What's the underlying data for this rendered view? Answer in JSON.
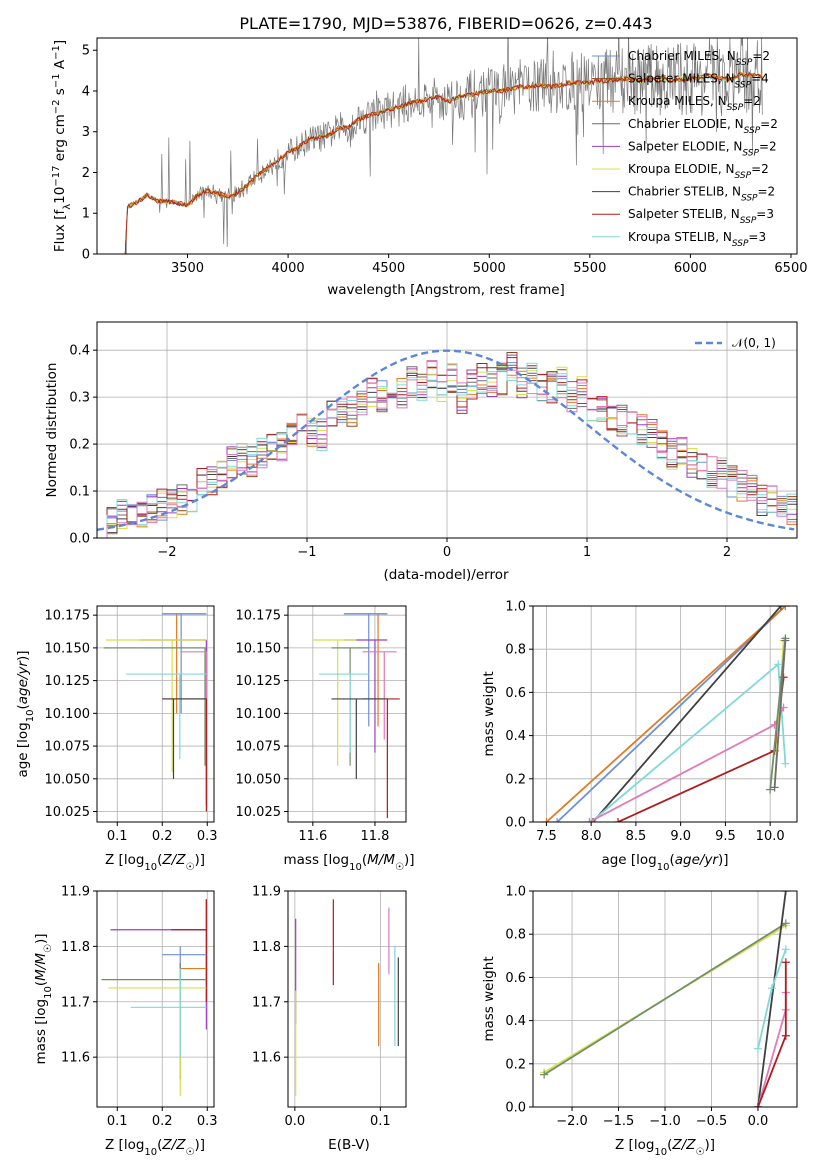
{
  "colors": {
    "chabrier_miles": "#6f8fd8",
    "salpeter_miles": "#8c4a1c",
    "kroupa_miles": "#e07b22",
    "chabrier_elodie": "#6e6e6e",
    "salpeter_elodie": "#9b3fc0",
    "kroupa_elodie": "#d8e04a",
    "chabrier_stelib": "#404040",
    "salpeter_stelib": "#b01c1c",
    "kroupa_stelib": "#80d8d8",
    "pink": "#e07ab8",
    "olive": "#6f8f6f",
    "normal": "#5b87d9"
  },
  "chart_data": [
    {
      "id": "spectrum",
      "type": "line",
      "title": "PLATE=1790, MJD=53876, FIBERID=0626, z=0.443",
      "xlabel": "wavelength [Angstrom, rest frame]",
      "ylabel": "Flux [f_λ 10^-17 erg cm^-2 s^-1 A^-1]",
      "xlim": [
        3050,
        6530
      ],
      "ylim": [
        0,
        5.3
      ],
      "xticks": [
        "3500",
        "4000",
        "4500",
        "5000",
        "5500",
        "6000",
        "6500"
      ],
      "yticks": [
        "0",
        "1",
        "2",
        "3",
        "4",
        "5"
      ],
      "model_points": [
        [
          3190,
          0
        ],
        [
          3200,
          1.15
        ],
        [
          3260,
          1.3
        ],
        [
          3300,
          1.45
        ],
        [
          3350,
          1.3
        ],
        [
          3400,
          1.3
        ],
        [
          3450,
          1.25
        ],
        [
          3500,
          1.2
        ],
        [
          3550,
          1.45
        ],
        [
          3600,
          1.55
        ],
        [
          3650,
          1.5
        ],
        [
          3700,
          1.4
        ],
        [
          3750,
          1.5
        ],
        [
          3800,
          1.7
        ],
        [
          3850,
          1.95
        ],
        [
          3900,
          2.1
        ],
        [
          3950,
          2.3
        ],
        [
          4000,
          2.5
        ],
        [
          4050,
          2.6
        ],
        [
          4100,
          2.8
        ],
        [
          4150,
          2.85
        ],
        [
          4200,
          2.9
        ],
        [
          4250,
          3.1
        ],
        [
          4300,
          3.1
        ],
        [
          4350,
          3.3
        ],
        [
          4400,
          3.4
        ],
        [
          4450,
          3.45
        ],
        [
          4500,
          3.55
        ],
        [
          4550,
          3.6
        ],
        [
          4600,
          3.7
        ],
        [
          4650,
          3.75
        ],
        [
          4700,
          3.8
        ],
        [
          4750,
          3.85
        ],
        [
          4800,
          3.75
        ],
        [
          4850,
          3.85
        ],
        [
          4900,
          3.9
        ],
        [
          4950,
          3.95
        ],
        [
          5000,
          4.0
        ],
        [
          5050,
          4.0
        ],
        [
          5100,
          4.05
        ],
        [
          5150,
          4.1
        ],
        [
          5200,
          4.1
        ],
        [
          5250,
          4.15
        ],
        [
          5300,
          4.1
        ],
        [
          5350,
          4.15
        ],
        [
          5400,
          4.2
        ],
        [
          5450,
          4.2
        ],
        [
          5500,
          4.2
        ],
        [
          5550,
          4.25
        ],
        [
          5600,
          4.25
        ],
        [
          5650,
          4.3
        ],
        [
          5700,
          4.3
        ],
        [
          5750,
          4.25
        ],
        [
          5800,
          4.3
        ],
        [
          5850,
          4.3
        ],
        [
          5900,
          4.25
        ],
        [
          5950,
          4.3
        ],
        [
          6000,
          4.3
        ],
        [
          6050,
          4.35
        ],
        [
          6100,
          4.35
        ],
        [
          6150,
          4.3
        ],
        [
          6200,
          4.3
        ],
        [
          6250,
          4.4
        ],
        [
          6300,
          4.4
        ],
        [
          6350,
          4.35
        ]
      ],
      "legend": [
        {
          "name": "Chabrier MILES, N_SSP=2",
          "color": "chabrier_miles"
        },
        {
          "name": "Salpeter MILES, N_SSP=4",
          "color": "salpeter_miles"
        },
        {
          "name": "Kroupa MILES, N_SSP=2",
          "color": "kroupa_miles"
        },
        {
          "name": "Chabrier ELODIE, N_SSP=2",
          "color": "chabrier_elodie"
        },
        {
          "name": "Salpeter ELODIE, N_SSP=2",
          "color": "salpeter_elodie"
        },
        {
          "name": "Kroupa ELODIE, N_SSP=2",
          "color": "kroupa_elodie"
        },
        {
          "name": "Chabrier STELIB, N_SSP=2",
          "color": "chabrier_stelib"
        },
        {
          "name": "Salpeter STELIB, N_SSP=3",
          "color": "salpeter_stelib"
        },
        {
          "name": "Kroupa STELIB, N_SSP=3",
          "color": "kroupa_stelib"
        }
      ],
      "legend_placement": "upper-right"
    },
    {
      "id": "residuals",
      "type": "histogram",
      "xlabel": "(data-model)/error",
      "ylabel": "Normed distribution",
      "xlim": [
        -2.5,
        2.5
      ],
      "ylim": [
        0,
        0.46
      ],
      "xticks": [
        "−2",
        "−1",
        "0",
        "1",
        "2"
      ],
      "yticks": [
        "0.0",
        "0.1",
        "0.2",
        "0.3",
        "0.4"
      ],
      "bin_width": 0.1,
      "mean_values": [
        0.025,
        0.04,
        0.05,
        0.06,
        0.05,
        0.06,
        0.07,
        0.07,
        0.08,
        0.09,
        0.12,
        0.12,
        0.13,
        0.16,
        0.17,
        0.16,
        0.18,
        0.19,
        0.19,
        0.22,
        0.23,
        0.23,
        0.22,
        0.26,
        0.27,
        0.27,
        0.28,
        0.31,
        0.3,
        0.32,
        0.31,
        0.33,
        0.32,
        0.35,
        0.32,
        0.34,
        0.3,
        0.33,
        0.34,
        0.33,
        0.34,
        0.37,
        0.33,
        0.34,
        0.32,
        0.32,
        0.33,
        0.3,
        0.31,
        0.28,
        0.27,
        0.26,
        0.25,
        0.24,
        0.23,
        0.22,
        0.2,
        0.18,
        0.18,
        0.16,
        0.15,
        0.14,
        0.14,
        0.12,
        0.11,
        0.1,
        0.08,
        0.08,
        0.07,
        0.06
      ],
      "series_colors": [
        "chabrier_miles",
        "salpeter_miles",
        "kroupa_miles",
        "chabrier_elodie",
        "salpeter_elodie",
        "kroupa_elodie",
        "chabrier_stelib",
        "salpeter_stelib",
        "kroupa_stelib",
        "pink"
      ],
      "legend": [
        {
          "name": "𝒩(0, 1)",
          "color": "normal"
        }
      ],
      "legend_placement": "upper-right",
      "grid": true
    },
    {
      "id": "age-vs-z",
      "type": "errorbar",
      "xlabel": "Z [log10(Z/Z☉)]",
      "ylabel": "age [log10(age/yr)]",
      "xlim": [
        0.055,
        0.315
      ],
      "ylim": [
        10.017,
        10.182
      ],
      "xticks": [
        "0.1",
        "0.2",
        "0.3"
      ],
      "yticks": [
        "10.025",
        "10.050",
        "10.075",
        "10.100",
        "10.125",
        "10.150",
        "10.175"
      ],
      "points": [
        {
          "x": 0.232,
          "y": 10.176,
          "x0": 0.2,
          "x1": 0.298,
          "y0": 10.1,
          "y1": 10.176,
          "color": "kroupa_miles"
        },
        {
          "x": 0.242,
          "y": 10.176,
          "x0": 0.2,
          "x1": 0.298,
          "y0": 10.1,
          "y1": 10.176,
          "color": "chabrier_miles"
        },
        {
          "x": 0.298,
          "y": 10.156,
          "x0": 0.15,
          "x1": 0.298,
          "y0": 10.03,
          "y1": 10.156,
          "color": "salpeter_elodie"
        },
        {
          "x": 0.222,
          "y": 10.156,
          "x0": 0.075,
          "x1": 0.298,
          "y0": 10.055,
          "y1": 10.156,
          "color": "kroupa_elodie"
        },
        {
          "x": 0.295,
          "y": 10.15,
          "x0": 0.07,
          "x1": 0.298,
          "y0": 10.06,
          "y1": 10.15,
          "color": "olive"
        },
        {
          "x": 0.298,
          "y": 10.147,
          "x0": 0.24,
          "x1": 0.298,
          "y0": 10.06,
          "y1": 10.147,
          "color": "pink"
        },
        {
          "x": 0.239,
          "y": 10.13,
          "x0": 0.12,
          "x1": 0.298,
          "y0": 10.065,
          "y1": 10.13,
          "color": "kroupa_stelib"
        },
        {
          "x": 0.298,
          "y": 10.111,
          "x0": 0.2,
          "x1": 0.298,
          "y0": 10.025,
          "y1": 10.111,
          "color": "salpeter_stelib"
        },
        {
          "x": 0.225,
          "y": 10.111,
          "x0": 0.2,
          "x1": 0.298,
          "y0": 10.05,
          "y1": 10.111,
          "color": "chabrier_stelib"
        }
      ],
      "grid": true
    },
    {
      "id": "age-vs-mass",
      "type": "errorbar",
      "xlabel": "mass [log10(M/M☉)]",
      "ylabel": "",
      "xlim": [
        11.52,
        11.9
      ],
      "ylim": [
        10.017,
        10.182
      ],
      "xticks": [
        "11.6",
        "11.8"
      ],
      "yticks": [
        "10.025",
        "10.050",
        "10.075",
        "10.100",
        "10.125",
        "10.150",
        "10.175"
      ],
      "points": [
        {
          "x": 11.81,
          "y": 10.176,
          "x0": 11.7,
          "x1": 11.84,
          "y0": 10.09,
          "y1": 10.176,
          "color": "kroupa_miles"
        },
        {
          "x": 11.78,
          "y": 10.176,
          "x0": 11.7,
          "x1": 11.84,
          "y0": 10.09,
          "y1": 10.176,
          "color": "chabrier_miles"
        },
        {
          "x": 11.8,
          "y": 10.156,
          "x0": 11.7,
          "x1": 11.84,
          "y0": 10.07,
          "y1": 10.156,
          "color": "salpeter_elodie"
        },
        {
          "x": 11.68,
          "y": 10.156,
          "x0": 11.6,
          "x1": 11.74,
          "y0": 10.06,
          "y1": 10.156,
          "color": "kroupa_elodie"
        },
        {
          "x": 11.72,
          "y": 10.15,
          "x0": 11.66,
          "x1": 11.78,
          "y0": 10.06,
          "y1": 10.15,
          "color": "olive"
        },
        {
          "x": 11.83,
          "y": 10.147,
          "x0": 11.76,
          "x1": 11.87,
          "y0": 10.08,
          "y1": 10.147,
          "color": "pink"
        },
        {
          "x": 11.72,
          "y": 10.13,
          "x0": 11.62,
          "x1": 11.78,
          "y0": 10.07,
          "y1": 10.13,
          "color": "kroupa_stelib"
        },
        {
          "x": 11.84,
          "y": 10.111,
          "x0": 11.76,
          "x1": 11.88,
          "y0": 10.02,
          "y1": 10.111,
          "color": "salpeter_stelib"
        },
        {
          "x": 11.74,
          "y": 10.111,
          "x0": 11.66,
          "x1": 11.84,
          "y0": 10.05,
          "y1": 10.111,
          "color": "chabrier_stelib"
        }
      ],
      "grid": true
    },
    {
      "id": "weight-vs-age",
      "type": "line",
      "xlabel": "age [log10(age/yr)]",
      "ylabel": "mass weight",
      "xlim": [
        7.35,
        10.3
      ],
      "ylim": [
        0,
        1.0
      ],
      "xticks": [
        "7.5",
        "8.0",
        "8.5",
        "9.0",
        "9.5",
        "10.0"
      ],
      "yticks": [
        "0.0",
        "0.2",
        "0.4",
        "0.6",
        "0.8",
        "1.0"
      ],
      "series": [
        {
          "color": "chabrier_miles",
          "x": [
            7.62,
            10.17
          ],
          "y": [
            0.0,
            1.0
          ]
        },
        {
          "color": "kroupa_miles",
          "x": [
            7.5,
            10.17
          ],
          "y": [
            0.0,
            1.0
          ]
        },
        {
          "color": "chabrier_stelib",
          "x": [
            8.02,
            10.12
          ],
          "y": [
            0.0,
            1.0
          ]
        },
        {
          "color": "kroupa_stelib",
          "x": [
            8.0,
            10.09,
            10.17
          ],
          "y": [
            0.0,
            0.73,
            0.27
          ]
        },
        {
          "color": "pink",
          "x": [
            7.98,
            10.05,
            10.15
          ],
          "y": [
            0.0,
            0.45,
            0.53
          ]
        },
        {
          "color": "salpeter_stelib",
          "x": [
            8.3,
            10.05,
            10.15
          ],
          "y": [
            0.0,
            0.33,
            0.67
          ]
        },
        {
          "color": "kroupa_elodie",
          "x": [
            10.05,
            10.15
          ],
          "y": [
            0.16,
            0.84
          ]
        },
        {
          "color": "olive",
          "x": [
            10.0,
            10.17
          ],
          "y": [
            0.15,
            0.85
          ]
        },
        {
          "color": "chabrier_elodie",
          "x": [
            10.05,
            10.17
          ],
          "y": [
            0.16,
            0.84
          ]
        }
      ],
      "grid": true
    },
    {
      "id": "mass-vs-z",
      "type": "errorbar",
      "xlabel": "Z [log10(Z/Z☉)]",
      "ylabel": "mass [log10(M/M☉)]",
      "xlim": [
        0.055,
        0.315
      ],
      "ylim": [
        11.51,
        11.9
      ],
      "xticks": [
        "0.1",
        "0.2",
        "0.3"
      ],
      "yticks": [
        "11.6",
        "11.7",
        "11.8",
        "11.9"
      ],
      "points": [
        {
          "x": 0.298,
          "y": 11.83,
          "x0": 0.085,
          "x1": 0.298,
          "y0": 11.65,
          "y1": 11.885,
          "color": "salpeter_elodie"
        },
        {
          "x": 0.298,
          "y": 11.83,
          "x0": 0.22,
          "x1": 0.298,
          "y0": 11.7,
          "y1": 11.885,
          "color": "salpeter_stelib"
        },
        {
          "x": 0.24,
          "y": 11.785,
          "x0": 0.2,
          "x1": 0.298,
          "y0": 11.64,
          "y1": 11.8,
          "color": "chabrier_miles"
        },
        {
          "x": 0.24,
          "y": 11.76,
          "x0": 0.24,
          "x1": 0.298,
          "y0": 11.63,
          "y1": 11.77,
          "color": "kroupa_miles"
        },
        {
          "x": 0.24,
          "y": 11.74,
          "x0": 0.065,
          "x1": 0.298,
          "y0": 11.56,
          "y1": 11.77,
          "color": "olive"
        },
        {
          "x": 0.24,
          "y": 11.725,
          "x0": 0.08,
          "x1": 0.298,
          "y0": 11.53,
          "y1": 11.74,
          "color": "kroupa_elodie"
        },
        {
          "x": 0.24,
          "y": 11.69,
          "x0": 0.13,
          "x1": 0.298,
          "y0": 11.6,
          "y1": 11.76,
          "color": "kroupa_stelib"
        }
      ],
      "grid": true
    },
    {
      "id": "mass-vs-ebv",
      "type": "errorbar",
      "xlabel": "E(B-V)",
      "ylabel": "",
      "xlim": [
        -0.008,
        0.13
      ],
      "ylim": [
        11.51,
        11.9
      ],
      "xticks": [
        "0.0",
        "0.1"
      ],
      "yticks": [
        "11.6",
        "11.7",
        "11.8",
        "11.9"
      ],
      "points": [
        {
          "x": 0.001,
          "y": 11.77,
          "y0": 11.66,
          "y1": 11.85,
          "color": "salpeter_elodie"
        },
        {
          "x": 0.001,
          "y": 11.63,
          "y0": 11.53,
          "y1": 11.72,
          "color": "kroupa_elodie"
        },
        {
          "x": 0.045,
          "y": 11.8,
          "y0": 11.73,
          "y1": 11.885,
          "color": "salpeter_stelib"
        },
        {
          "x": 0.098,
          "y": 11.7,
          "y0": 11.62,
          "y1": 11.77,
          "color": "kroupa_miles"
        },
        {
          "x": 0.11,
          "y": 11.82,
          "y0": 11.75,
          "y1": 11.87,
          "color": "pink"
        },
        {
          "x": 0.117,
          "y": 11.71,
          "y0": 11.62,
          "y1": 11.8,
          "color": "kroupa_stelib"
        },
        {
          "x": 0.121,
          "y": 11.73,
          "y0": 11.62,
          "y1": 11.78,
          "color": "chabrier_stelib"
        }
      ],
      "grid": true
    },
    {
      "id": "weight-vs-z",
      "type": "line",
      "xlabel": "Z [log10(Z/Z☉)]",
      "ylabel": "mass weight",
      "xlim": [
        -2.42,
        0.42
      ],
      "ylim": [
        0,
        1.0
      ],
      "xticks": [
        "−2.0",
        "−1.5",
        "−1.0",
        "−0.5",
        "0.0"
      ],
      "yticks": [
        "0.0",
        "0.2",
        "0.4",
        "0.6",
        "0.8",
        "1.0"
      ],
      "series": [
        {
          "color": "kroupa_elodie",
          "x": [
            -2.3,
            0.3
          ],
          "y": [
            0.16,
            0.84
          ]
        },
        {
          "color": "olive",
          "x": [
            -2.3,
            0.3
          ],
          "y": [
            0.15,
            0.85
          ]
        },
        {
          "color": "chabrier_stelib",
          "x": [
            0.0,
            0.3
          ],
          "y": [
            0.0,
            1.0
          ]
        },
        {
          "color": "kroupa_stelib",
          "x": [
            0.0,
            0.15,
            0.3
          ],
          "y": [
            0.27,
            0.55,
            0.73
          ]
        },
        {
          "color": "pink",
          "x": [
            0.0,
            0.3,
            0.3
          ],
          "y": [
            0.0,
            0.45,
            0.53
          ]
        },
        {
          "color": "salpeter_stelib",
          "x": [
            0.0,
            0.3,
            0.3
          ],
          "y": [
            0.0,
            0.33,
            0.67
          ]
        }
      ],
      "grid": true
    }
  ]
}
